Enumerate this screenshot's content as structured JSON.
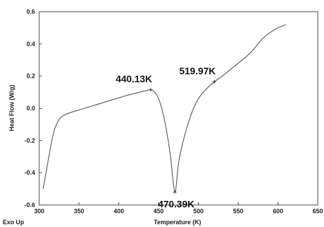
{
  "chart_data": {
    "type": "line",
    "xlabel": "Temperature (K)",
    "ylabel": "Heat Flow (W/g)",
    "footer_left": "Exo Up",
    "xlim": [
      300,
      650
    ],
    "ylim": [
      -0.6,
      0.6
    ],
    "x_ticks": [
      "300",
      "350",
      "400",
      "450",
      "500",
      "550",
      "600",
      "650"
    ],
    "x_tick_values": [
      300,
      350,
      400,
      450,
      500,
      550,
      600,
      650
    ],
    "y_ticks": [
      "0.6",
      "0.4",
      "0.2",
      "0.0",
      "-0.2",
      "-0.4",
      "-0.6"
    ],
    "y_tick_values": [
      0.6,
      0.4,
      0.2,
      0.0,
      -0.2,
      -0.4,
      -0.6
    ],
    "line_color": "#555555",
    "series": [
      {
        "x": [
          305,
          310,
          315,
          320,
          325,
          330,
          340,
          350,
          360,
          370,
          380,
          390,
          400,
          410,
          420,
          430,
          435,
          440.13,
          445,
          450,
          455,
          460,
          465,
          470.39,
          475,
          480,
          490,
          500,
          510,
          519.97,
          530,
          540,
          550,
          560,
          570,
          580,
          590,
          600,
          610
        ],
        "y": [
          -0.5,
          -0.36,
          -0.22,
          -0.12,
          -0.07,
          -0.045,
          -0.025,
          -0.01,
          0.005,
          0.02,
          0.035,
          0.05,
          0.065,
          0.08,
          0.092,
          0.105,
          0.11,
          0.115,
          0.1,
          0.06,
          -0.02,
          -0.14,
          -0.3,
          -0.52,
          -0.34,
          -0.22,
          -0.05,
          0.06,
          0.12,
          0.165,
          0.2,
          0.24,
          0.28,
          0.32,
          0.37,
          0.43,
          0.47,
          0.5,
          0.52
        ]
      }
    ],
    "annotations": [
      {
        "text": "440.13K",
        "x": 440.13,
        "y": 0.115,
        "placement": "above-left"
      },
      {
        "text": "519.97K",
        "x": 519.97,
        "y": 0.165,
        "placement": "above-left"
      },
      {
        "text": "470.39K",
        "x": 470.39,
        "y": -0.52,
        "placement": "below"
      }
    ]
  }
}
